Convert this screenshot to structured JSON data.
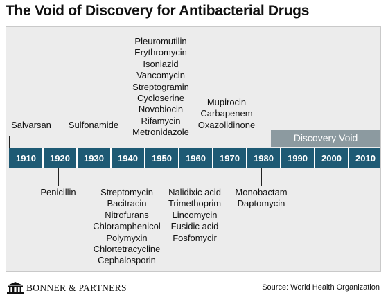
{
  "title": "The Void of Discovery for Antibacterial Drugs",
  "timeline": {
    "decades": [
      "1910",
      "1920",
      "1930",
      "1940",
      "1950",
      "1960",
      "1970",
      "1980",
      "1990",
      "2000",
      "2010"
    ],
    "void_label": "Discovery Void",
    "above": {
      "g1910": [
        "Salvarsan"
      ],
      "g1930": [
        "Sulfonamide"
      ],
      "g1950": [
        "Pleuromutilin",
        "Erythromycin",
        "Isoniazid",
        "Vancomycin",
        "Streptogramin",
        "Cycloserine",
        "Novobiocin",
        "Rifamycin",
        "Metronidazole"
      ],
      "g1970": [
        "Mupirocin",
        "Carbapenem",
        "Oxazolidinone"
      ]
    },
    "below": {
      "g1920": [
        "Penicillin"
      ],
      "g1940": [
        "Streptomycin",
        "Bacitracin",
        "Nitrofurans",
        "Chloramphenicol",
        "Polymyxin",
        "Chlortetracycline",
        "Cephalosporin"
      ],
      "g1960": [
        "Nalidixic acid",
        "Trimethoprim",
        "Lincomycin",
        "Fusidic acid",
        "Fosfomycir"
      ],
      "g1980": [
        "Monobactam",
        "Daptomycin"
      ]
    }
  },
  "footer": {
    "brand": "BONNER & PARTNERS",
    "source": "Source: World Health Organization"
  },
  "colors": {
    "bar": "#1e5a74",
    "void": "#8c9aa0",
    "panel": "#ececec"
  },
  "icons": {
    "logo": "building-columns-icon"
  }
}
